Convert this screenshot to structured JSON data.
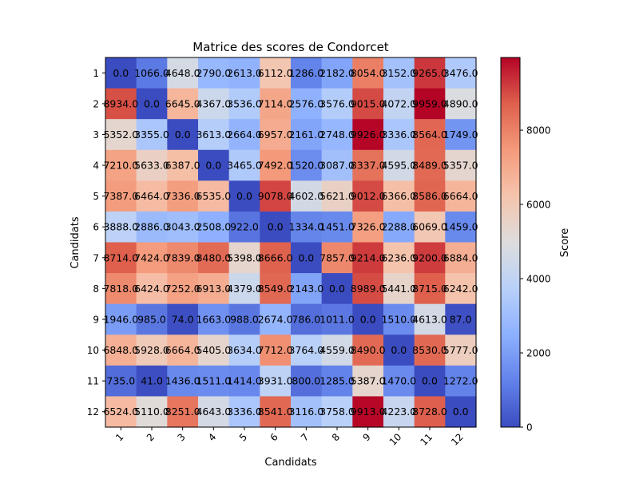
{
  "chart_data": {
    "type": "heatmap",
    "title": "Matrice des scores de Condorcet",
    "xlabel": "Candidats",
    "ylabel": "Candidats",
    "x_categories": [
      "1",
      "2",
      "3",
      "4",
      "5",
      "6",
      "7",
      "8",
      "9",
      "10",
      "11",
      "12"
    ],
    "y_categories": [
      "1",
      "2",
      "3",
      "4",
      "5",
      "6",
      "7",
      "8",
      "9",
      "10",
      "11",
      "12"
    ],
    "colormap": "coolwarm",
    "vmin": 0,
    "vmax": 9959,
    "colorbar": {
      "label": "Score",
      "ticks": [
        0,
        2000,
        4000,
        6000,
        8000
      ],
      "tick_labels": [
        "0",
        "2000",
        "4000",
        "6000",
        "8000"
      ]
    },
    "values": [
      [
        0.0,
        1066.0,
        4648.0,
        2790.0,
        2613.0,
        6112.0,
        1286.0,
        2182.0,
        8054.0,
        3152.0,
        9265.0,
        3476.0
      ],
      [
        8934.0,
        0.0,
        6645.0,
        4367.0,
        3536.0,
        7114.0,
        2576.0,
        3576.0,
        9015.0,
        4072.0,
        9959.0,
        4890.0
      ],
      [
        5352.0,
        3355.0,
        0.0,
        3613.0,
        2664.0,
        6957.0,
        2161.0,
        2748.0,
        9926.0,
        3336.0,
        8564.0,
        1749.0
      ],
      [
        7210.0,
        5633.0,
        6387.0,
        0.0,
        3465.0,
        7492.0,
        1520.0,
        3087.0,
        8337.0,
        4595.0,
        8489.0,
        5357.0
      ],
      [
        7387.0,
        6464.0,
        7336.0,
        6535.0,
        0.0,
        9078.0,
        4602.0,
        5621.0,
        9012.0,
        6366.0,
        8586.0,
        6664.0
      ],
      [
        3888.0,
        2886.0,
        3043.0,
        2508.0,
        922.0,
        0.0,
        1334.0,
        1451.0,
        7326.0,
        2288.0,
        6069.0,
        1459.0
      ],
      [
        8714.0,
        7424.0,
        7839.0,
        8480.0,
        5398.0,
        8666.0,
        0.0,
        7857.0,
        9214.0,
        6236.0,
        9200.0,
        6884.0
      ],
      [
        7818.0,
        6424.0,
        7252.0,
        6913.0,
        4379.0,
        8549.0,
        2143.0,
        0.0,
        8989.0,
        5441.0,
        8715.0,
        6242.0
      ],
      [
        1946.0,
        985.0,
        74.0,
        1663.0,
        988.0,
        2674.0,
        786.0,
        1011.0,
        0.0,
        1510.0,
        4613.0,
        87.0
      ],
      [
        6848.0,
        5928.0,
        6664.0,
        5405.0,
        3634.0,
        7712.0,
        3764.0,
        4559.0,
        8490.0,
        0.0,
        8530.0,
        5777.0
      ],
      [
        735.0,
        41.0,
        1436.0,
        1511.0,
        1414.0,
        3931.0,
        800.0,
        1285.0,
        5387.0,
        1470.0,
        0.0,
        1272.0
      ],
      [
        6524.0,
        5110.0,
        8251.0,
        4643.0,
        3336.0,
        8541.0,
        3116.0,
        3758.0,
        9913.0,
        4223.0,
        8728.0,
        0.0
      ]
    ]
  }
}
